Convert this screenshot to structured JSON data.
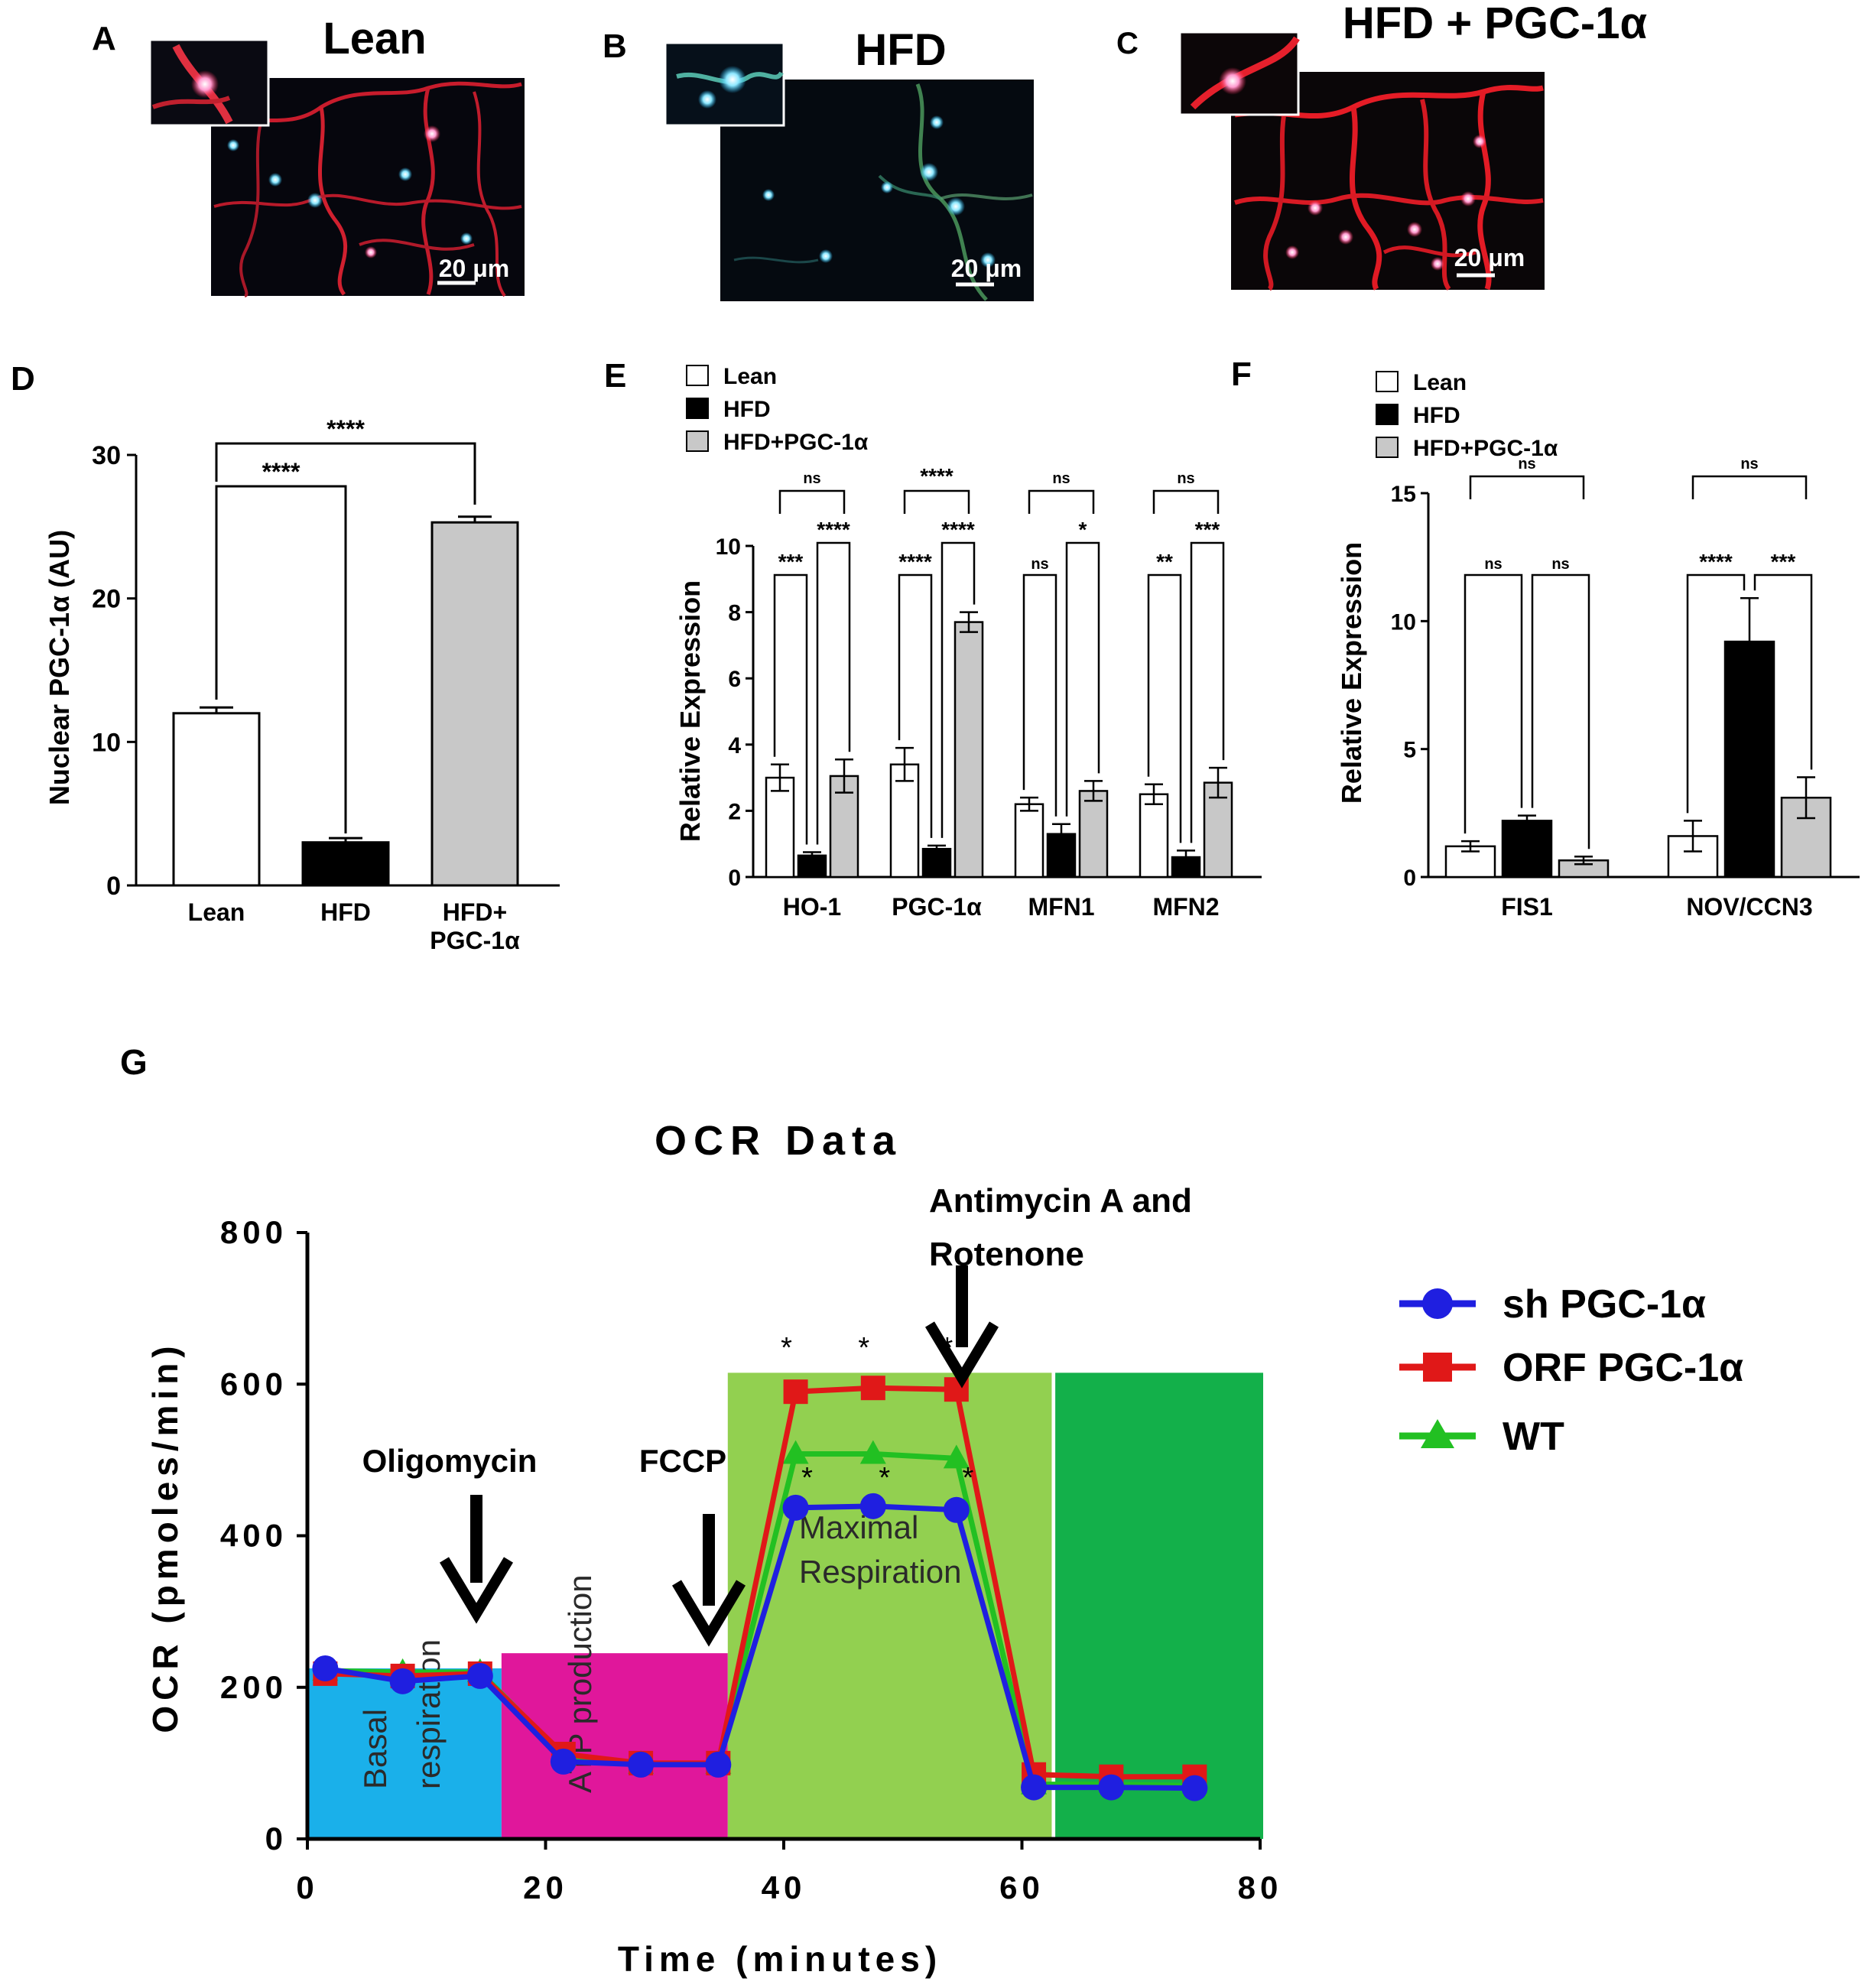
{
  "panels": {
    "A": {
      "letter": "A",
      "title": "Lean",
      "scale_bar": "20 μm"
    },
    "B": {
      "letter": "B",
      "title": "HFD",
      "scale_bar": "20 μm"
    },
    "C": {
      "letter": "C",
      "title": "HFD + PGC-1α",
      "scale_bar": "20 μm"
    },
    "D": {
      "letter": "D"
    },
    "E": {
      "letter": "E"
    },
    "F": {
      "letter": "F"
    },
    "G": {
      "letter": "G"
    }
  },
  "chart_data": [
    {
      "id": "D",
      "type": "bar",
      "ylabel": "Nuclear PGC-1α (AU)",
      "xlabel": "",
      "ylim": [
        0,
        30
      ],
      "yticks": [
        "0",
        "10",
        "20",
        "30"
      ],
      "categories": [
        "Lean",
        "HFD",
        "HFD+\nPGC-1α"
      ],
      "values": [
        12.0,
        3.0,
        25.3
      ],
      "errors": [
        0.4,
        0.3,
        0.4
      ],
      "colors": [
        "#ffffff",
        "#000000",
        "#c8c8c8"
      ],
      "significance": [
        {
          "from": 0,
          "to": 1,
          "label": "****"
        },
        {
          "from": 0,
          "to": 2,
          "label": "****"
        }
      ]
    },
    {
      "id": "E",
      "type": "bar",
      "ylabel": "Relative Expression",
      "xlabel": "",
      "ylim": [
        0,
        10
      ],
      "yticks": [
        "0",
        "2",
        "4",
        "6",
        "8",
        "10"
      ],
      "categories": [
        "HO-1",
        "PGC-1α",
        "MFN1",
        "MFN2"
      ],
      "legend": [
        "Lean",
        "HFD",
        "HFD+PGC-1α"
      ],
      "series": [
        {
          "name": "Lean",
          "values": [
            3.0,
            3.4,
            2.2,
            2.5
          ],
          "errors": [
            0.4,
            0.5,
            0.2,
            0.3
          ],
          "color": "#ffffff"
        },
        {
          "name": "HFD",
          "values": [
            0.65,
            0.85,
            1.3,
            0.6
          ],
          "errors": [
            0.1,
            0.1,
            0.3,
            0.2
          ],
          "color": "#000000"
        },
        {
          "name": "HFD+PGC-1α",
          "values": [
            3.05,
            7.7,
            2.6,
            2.85
          ],
          "errors": [
            0.5,
            0.3,
            0.3,
            0.45
          ],
          "color": "#c8c8c8"
        }
      ],
      "significance": [
        {
          "category": 0,
          "lean_hfd": "***",
          "hfd_pgc": "****",
          "lean_pgc": "ns"
        },
        {
          "category": 1,
          "lean_hfd": "****",
          "hfd_pgc": "****",
          "lean_pgc": "****"
        },
        {
          "category": 2,
          "lean_hfd": "ns",
          "hfd_pgc": "*",
          "lean_pgc": "ns"
        },
        {
          "category": 3,
          "lean_hfd": "**",
          "hfd_pgc": "***",
          "lean_pgc": "ns"
        }
      ]
    },
    {
      "id": "F",
      "type": "bar",
      "ylabel": "Relative Expression",
      "xlabel": "",
      "ylim": [
        0,
        15
      ],
      "yticks": [
        "0",
        "5",
        "10",
        "15"
      ],
      "categories": [
        "FIS1",
        "NOV/CCN3"
      ],
      "legend": [
        "Lean",
        "HFD",
        "HFD+PGC-1α"
      ],
      "series": [
        {
          "name": "Lean",
          "values": [
            1.2,
            1.6
          ],
          "errors": [
            0.2,
            0.6
          ],
          "color": "#ffffff"
        },
        {
          "name": "HFD",
          "values": [
            2.2,
            9.2
          ],
          "errors": [
            0.2,
            1.7
          ],
          "color": "#000000"
        },
        {
          "name": "HFD+PGC-1α",
          "values": [
            0.65,
            3.1
          ],
          "errors": [
            0.15,
            0.8
          ],
          "color": "#c8c8c8"
        }
      ],
      "significance": [
        {
          "category": 0,
          "lean_hfd": "ns",
          "hfd_pgc": "ns",
          "lean_pgc": "ns"
        },
        {
          "category": 1,
          "lean_hfd": "****",
          "hfd_pgc": "***",
          "lean_pgc": "ns"
        }
      ]
    },
    {
      "id": "G",
      "type": "line",
      "title": "OCR Data",
      "xlabel": "Time (minutes)",
      "ylabel": "OCR (pmoles/min)",
      "xlim": [
        0,
        80
      ],
      "ylim": [
        0,
        800
      ],
      "xticks": [
        "0",
        "20",
        "40",
        "60",
        "80"
      ],
      "yticks": [
        "0",
        "200",
        "400",
        "600",
        "800"
      ],
      "x": [
        1.5,
        8,
        14.5,
        21.5,
        28,
        34.5,
        41,
        47.5,
        54.5,
        61,
        67.5,
        74.5
      ],
      "series": [
        {
          "name": "sh PGC-1α",
          "color": "#1f1fe0",
          "marker": "circle",
          "values": [
            225,
            208,
            215,
            102,
            98,
            98,
            437,
            439,
            434,
            68,
            68,
            67
          ]
        },
        {
          "name": "ORF PGC-1α",
          "color": "#e01818",
          "marker": "square",
          "values": [
            218,
            215,
            218,
            112,
            100,
            100,
            590,
            595,
            593,
            85,
            82,
            82
          ]
        },
        {
          "name": "WT",
          "color": "#22c022",
          "marker": "triangle",
          "values": [
            222,
            220,
            220,
            110,
            99,
            99,
            508,
            508,
            502,
            72,
            72,
            70
          ]
        }
      ],
      "regions": [
        {
          "x0": 0,
          "x1": 16.3,
          "top": 225,
          "color": "#1ab0ea",
          "label": "Basal\nrespiration"
        },
        {
          "x0": 16.3,
          "x1": 35.3,
          "top": 245,
          "color": "#e0179b",
          "label": "ATP production"
        },
        {
          "x0": 35.3,
          "x1": 62.5,
          "top": 615,
          "color": "#92d050",
          "label": "Maximal\nRespiration"
        },
        {
          "x0": 62.8,
          "x1": 80.5,
          "top": 615,
          "color": "#13b04a",
          "label": ""
        }
      ],
      "injections": [
        {
          "x": 14.5,
          "label": "Oligomycin"
        },
        {
          "x": 34.5,
          "label": "FCCP"
        },
        {
          "x": 55.0,
          "label": "Antimycin A and\nRotenone"
        }
      ],
      "asterisks_upper": {
        "x": [
          41,
          47.5,
          54.5
        ],
        "label": "*"
      },
      "asterisks_lower": {
        "x": [
          41,
          47.5,
          54.5
        ],
        "label": "*"
      },
      "legend": [
        "sh PGC-1α",
        "ORF PGC-1α",
        "WT"
      ]
    }
  ]
}
